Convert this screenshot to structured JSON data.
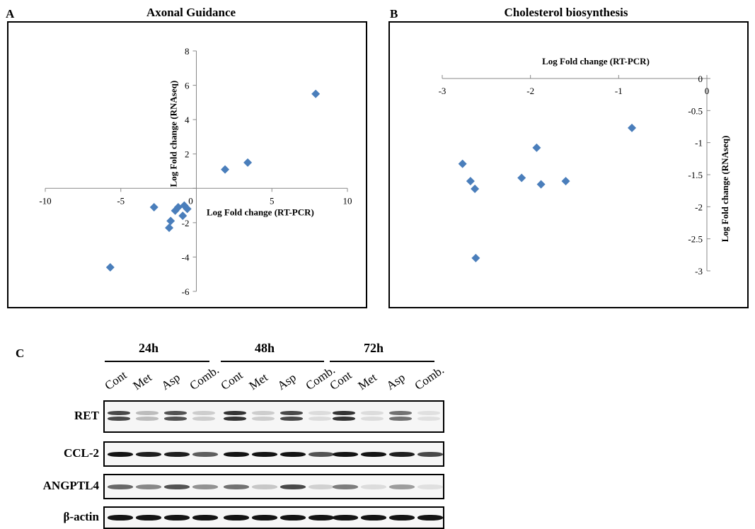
{
  "panels": {
    "a": {
      "letter": "A",
      "title": "Axonal Guidance"
    },
    "b": {
      "letter": "B",
      "title": "Cholesterol biosynthesis"
    },
    "c": {
      "letter": "C"
    }
  },
  "chart_data": [
    {
      "type": "scatter",
      "title": "Axonal Guidance",
      "xlabel": "Log Fold change (RT-PCR)",
      "ylabel": "Log Fold change (RNAseq)",
      "xlim": [
        -10,
        10
      ],
      "ylim": [
        -6,
        8
      ],
      "xticks": [
        -10,
        -5,
        0,
        5,
        10
      ],
      "yticks": [
        -6,
        -4,
        -2,
        0,
        2,
        4,
        6,
        8
      ],
      "marker_color": "#4a7ebb",
      "marker": "diamond",
      "grid": false,
      "points": [
        {
          "x": -5.7,
          "y": -4.6
        },
        {
          "x": -2.8,
          "y": -1.1
        },
        {
          "x": -1.8,
          "y": -2.3
        },
        {
          "x": -1.7,
          "y": -1.9
        },
        {
          "x": -1.4,
          "y": -1.3
        },
        {
          "x": -1.2,
          "y": -1.1
        },
        {
          "x": -0.9,
          "y": -1.6
        },
        {
          "x": -0.8,
          "y": -1.0
        },
        {
          "x": -0.6,
          "y": -1.2
        },
        {
          "x": 1.9,
          "y": 1.1
        },
        {
          "x": 3.4,
          "y": 1.5
        },
        {
          "x": 7.9,
          "y": 5.5
        }
      ]
    },
    {
      "type": "scatter",
      "title": "Cholesterol biosynthesis",
      "xlabel": "Log Fold change (RT-PCR)",
      "ylabel": "Log Fold change (RNAseq)",
      "xlim": [
        -3,
        0
      ],
      "ylim": [
        -3,
        0
      ],
      "xticks": [
        -3,
        -2,
        -1,
        0
      ],
      "yticks": [
        0,
        -0.5,
        -1,
        -1.5,
        -2,
        -2.5,
        -3
      ],
      "marker_color": "#4a7ebb",
      "marker": "diamond",
      "grid": false,
      "points": [
        {
          "x": -2.77,
          "y": -1.33
        },
        {
          "x": -2.68,
          "y": -1.6
        },
        {
          "x": -2.63,
          "y": -1.72
        },
        {
          "x": -2.62,
          "y": -2.8
        },
        {
          "x": -2.1,
          "y": -1.55
        },
        {
          "x": -1.93,
          "y": -1.08
        },
        {
          "x": -1.88,
          "y": -1.65
        },
        {
          "x": -1.6,
          "y": -1.6
        },
        {
          "x": -0.85,
          "y": -0.77
        }
      ]
    }
  ],
  "blot": {
    "timepoints": [
      "24h",
      "48h",
      "72h"
    ],
    "lanes": [
      "Cont",
      "Met",
      "Asp",
      "Comb."
    ],
    "rows": [
      {
        "label": "RET",
        "intensities": [
          [
            0.75,
            0.2,
            0.7,
            0.12
          ],
          [
            0.85,
            0.12,
            0.75,
            0.05
          ],
          [
            0.85,
            0.05,
            0.55,
            0.03
          ]
        ]
      },
      {
        "label": "CCL-2",
        "intensities": [
          [
            1.0,
            0.95,
            0.95,
            0.65
          ],
          [
            1.0,
            1.0,
            1.0,
            0.7
          ],
          [
            1.0,
            1.0,
            0.95,
            0.75
          ]
        ]
      },
      {
        "label": "ANGPTL4",
        "intensities": [
          [
            0.6,
            0.45,
            0.7,
            0.4
          ],
          [
            0.55,
            0.15,
            0.75,
            0.1
          ],
          [
            0.5,
            0.05,
            0.35,
            0.03
          ]
        ]
      },
      {
        "label": "β-actin",
        "intensities": [
          [
            1.0,
            1.0,
            1.0,
            1.0
          ],
          [
            1.0,
            1.0,
            1.0,
            1.0
          ],
          [
            1.0,
            1.0,
            1.0,
            1.0
          ]
        ]
      }
    ]
  }
}
